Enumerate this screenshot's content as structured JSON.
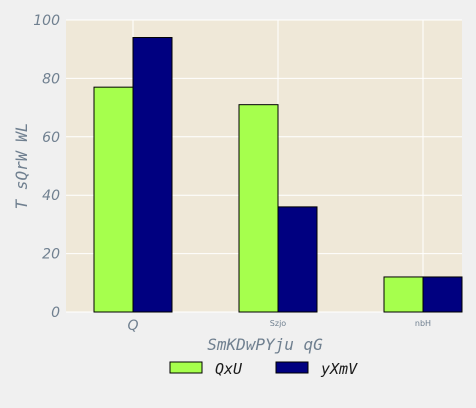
{
  "chart_data": {
    "type": "bar",
    "title": "",
    "xlabel": "SmKDwPYju qG",
    "ylabel": "T sQrW WL",
    "categories": [
      "Q",
      "Szjo",
      "nbH"
    ],
    "series": [
      {
        "name": "QxU",
        "values": [
          77,
          71,
          12
        ],
        "color": "#a6ff4d"
      },
      {
        "name": "yXmV",
        "values": [
          94,
          36,
          12
        ],
        "color": "#000080"
      }
    ],
    "ylim": [
      0,
      100
    ],
    "yticks": [
      0,
      20,
      40,
      60,
      80,
      100
    ],
    "grid": true,
    "legend_position": "bottom-center",
    "plot_background": "#efe8d8",
    "bar_edge_color": "#000000"
  }
}
